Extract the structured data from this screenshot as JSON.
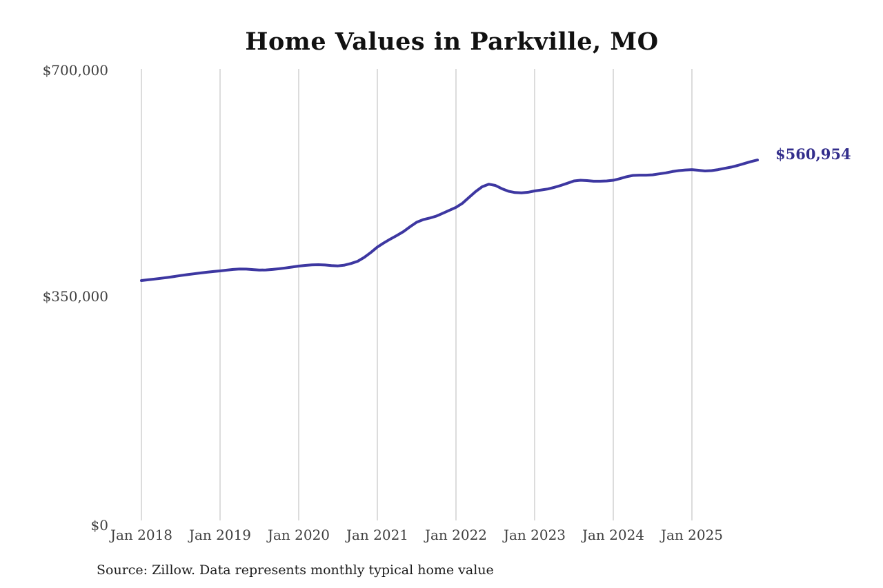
{
  "chart": {
    "title": "Home Values in Parkville, MO",
    "latest_label": "$560,954",
    "source": "Source: Zillow. Data represents monthly typical home value"
  },
  "colors": {
    "line": "#3d37a1",
    "label": "#332e8c",
    "gridline": "#c4c4c4",
    "axis_text": "#404040"
  },
  "chart_data": {
    "type": "line",
    "title": "Home Values in Parkville, MO",
    "xlabel": "",
    "ylabel": "",
    "x_start_month": "2018-01",
    "x_end_month": "2025-11",
    "x_tick_labels": [
      "Jan 2018",
      "Jan 2019",
      "Jan 2020",
      "Jan 2021",
      "Jan 2022",
      "Jan 2023",
      "Jan 2024",
      "Jan 2025"
    ],
    "y_tick_labels": [
      "$0",
      "$350,000",
      "$700,000"
    ],
    "y_tick_values": [
      0,
      350000,
      700000
    ],
    "ylim": [
      0,
      700000
    ],
    "grid": "vertical-only",
    "legend": "none",
    "annotation": "$560,954",
    "latest_value": 560954,
    "series": [
      {
        "name": "Monthly typical home value",
        "values": [
          374000,
          375200,
          376400,
          377600,
          378900,
          380400,
          381800,
          383200,
          384500,
          385800,
          387000,
          388000,
          389000,
          390200,
          391300,
          392000,
          391800,
          391000,
          390300,
          390500,
          391200,
          392300,
          393600,
          395000,
          396500,
          397600,
          398300,
          398600,
          398200,
          397300,
          396800,
          398000,
          400500,
          404000,
          410000,
          417500,
          426000,
          432500,
          438500,
          444000,
          450000,
          457500,
          464500,
          468500,
          471000,
          474000,
          478500,
          483000,
          487500,
          494000,
          503000,
          512000,
          519500,
          523500,
          521500,
          516500,
          512500,
          510500,
          510000,
          511000,
          513000,
          514500,
          516000,
          518500,
          521500,
          525000,
          528500,
          529500,
          529000,
          528000,
          528000,
          528500,
          529500,
          532000,
          535000,
          537000,
          537500,
          537500,
          538000,
          539500,
          541000,
          543000,
          544500,
          545500,
          546000,
          545000,
          544000,
          544500,
          546000,
          548000,
          550000,
          552500,
          555500,
          558500,
          560954
        ]
      }
    ]
  }
}
